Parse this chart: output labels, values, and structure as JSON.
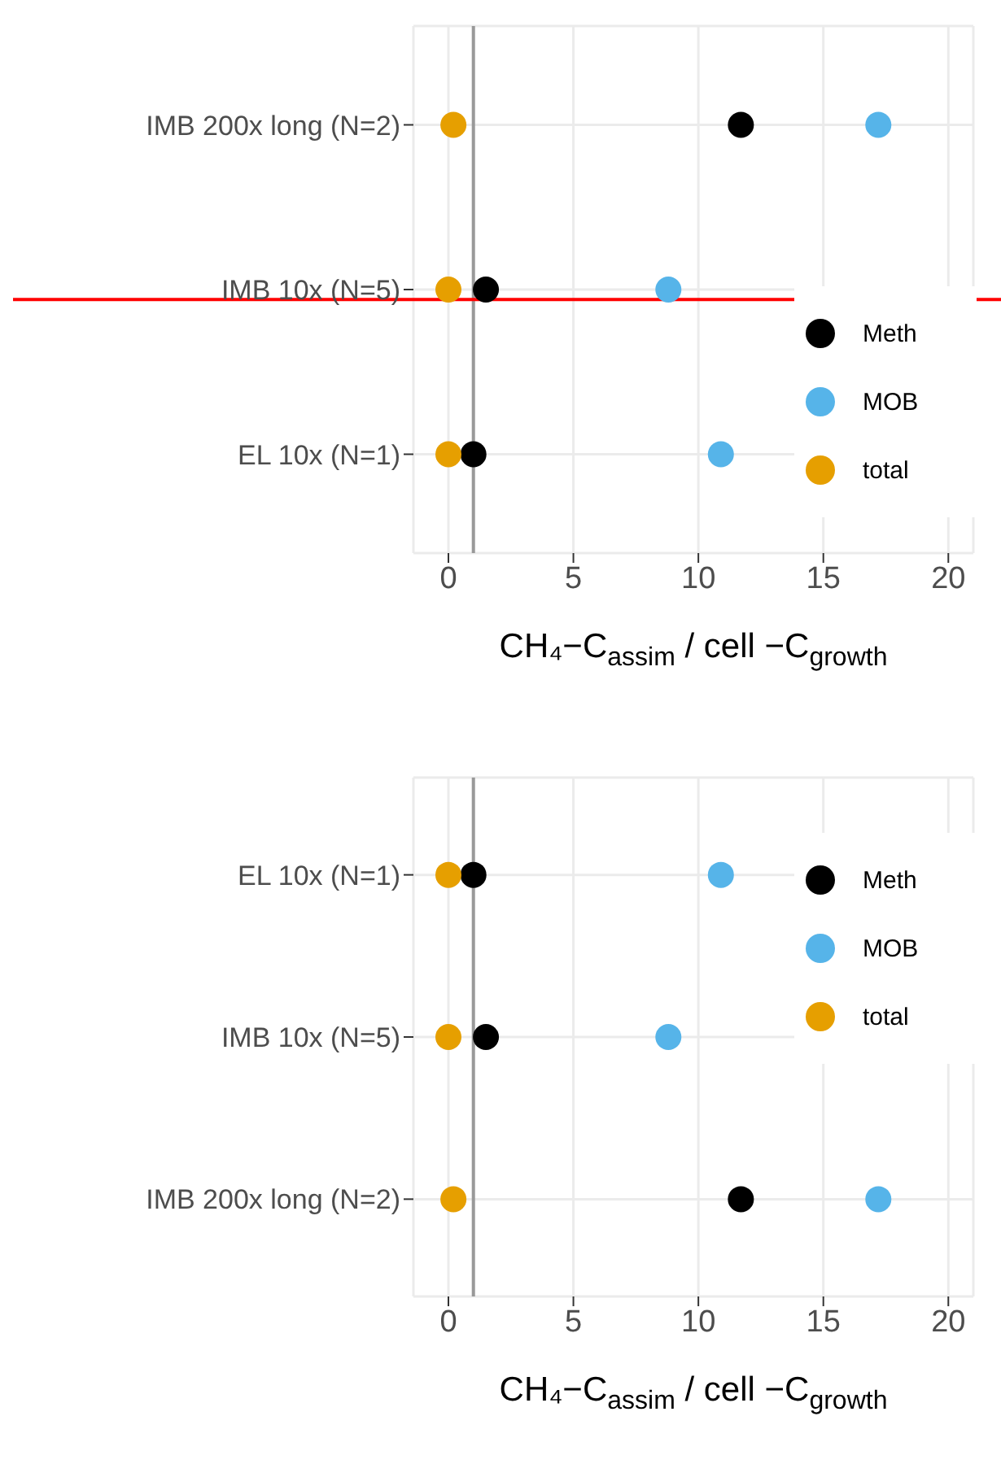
{
  "chart_data": [
    {
      "type": "scatter",
      "categories": [
        "IMB 200x long (N=2)",
        "IMB 10x (N=5)",
        "EL 10x (N=1)"
      ],
      "orientation": "horizontal",
      "xlabel": "CH₄−C$_{assim}$ / cell −C$_{growth}$",
      "xlim": [
        -1.4,
        21
      ],
      "xticks": [
        0,
        5,
        10,
        15,
        20
      ],
      "grid": true,
      "legend": "right",
      "marker": "circle",
      "series": [
        {
          "name": "Meth",
          "color": "#000000",
          "values": [
            11.7,
            1.5,
            1.0
          ]
        },
        {
          "name": "MOB",
          "color": "#56b4e9",
          "values": [
            17.2,
            8.8,
            10.9
          ]
        },
        {
          "name": "total",
          "color": "#e69f00",
          "values": [
            0.2,
            0.0,
            0.0
          ]
        }
      ],
      "ref_lines": [
        {
          "axis": "x",
          "value": 1,
          "color": "#999999"
        },
        {
          "axis": "y",
          "value": "IMB 10x (N=5)",
          "color": "#ff0000"
        }
      ]
    },
    {
      "type": "scatter",
      "categories": [
        "EL 10x (N=1)",
        "IMB 10x (N=5)",
        "IMB 200x long (N=2)"
      ],
      "orientation": "horizontal",
      "xlabel": "CH₄−C$_{assim}$ / cell −C$_{growth}$",
      "xlim": [
        -1.4,
        21
      ],
      "xticks": [
        0,
        5,
        10,
        15,
        20
      ],
      "grid": true,
      "legend": "top right",
      "marker": "circle",
      "series": [
        {
          "name": "Meth",
          "color": "#000000",
          "values": [
            1.0,
            1.5,
            11.7
          ]
        },
        {
          "name": "MOB",
          "color": "#56b4e9",
          "values": [
            10.9,
            8.8,
            17.2
          ]
        },
        {
          "name": "total",
          "color": "#e69f00",
          "values": [
            0.0,
            0.0,
            0.2
          ]
        }
      ],
      "ref_lines": [
        {
          "axis": "x",
          "value": 1,
          "color": "#999999"
        }
      ]
    }
  ]
}
